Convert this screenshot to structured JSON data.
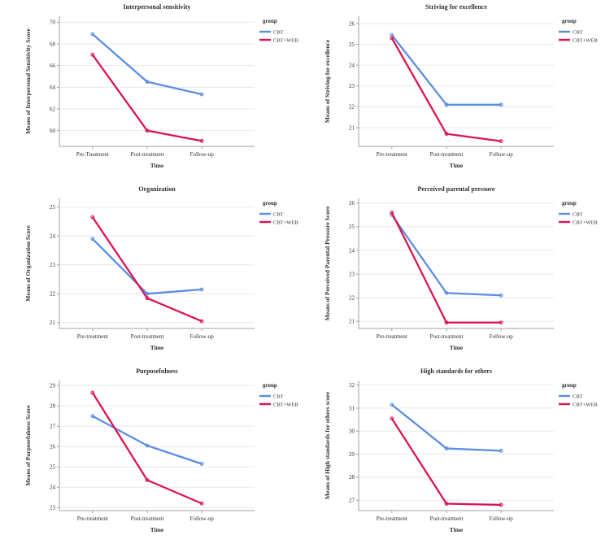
{
  "page": {
    "background": "#ffffff",
    "layout": "2x3 grid of SPSS-style line charts"
  },
  "colors": {
    "cbt_line": "#5b8de4",
    "cbt_web_line": "#de1350",
    "gridline": "#e8e8e8",
    "axis": "#a0a0a0",
    "text": "#2e2e2e"
  },
  "chart_data": [
    {
      "type": "line",
      "title": "Interpersonal sensitivity",
      "xlabel": "Time",
      "ylabel": "Means of Interpersonal Sensitivity Score",
      "categories": [
        "Pre-Treatment",
        "Post-treatment",
        "Follow-up"
      ],
      "yticks": [
        60,
        62,
        64,
        66,
        68,
        70
      ],
      "ylim": [
        58.55,
        70.55
      ],
      "grid": true,
      "legend_title": "group",
      "legend_position": "right",
      "series": [
        {
          "name": "CBT",
          "color": "#5b8de4",
          "values": [
            68.9,
            64.5,
            63.35
          ]
        },
        {
          "name": "CBT+WEB",
          "color": "#de1350",
          "values": [
            67.0,
            60.0,
            59.05
          ]
        }
      ]
    },
    {
      "type": "line",
      "title": "Striving for excellence",
      "xlabel": "Time",
      "ylabel": "Means of Striving for excellence",
      "categories": [
        "Pre-treatment",
        "Post-treatment",
        "Follow-up"
      ],
      "yticks": [
        21,
        22,
        23,
        24,
        25,
        26
      ],
      "ylim": [
        20.1,
        26.35
      ],
      "grid": true,
      "legend_title": "group",
      "legend_position": "right",
      "series": [
        {
          "name": "CBT",
          "color": "#5b8de4",
          "values": [
            25.45,
            22.1,
            22.1
          ]
        },
        {
          "name": "CBT+WEB",
          "color": "#de1350",
          "values": [
            25.3,
            20.7,
            20.35
          ]
        }
      ]
    },
    {
      "type": "line",
      "title": "Organization",
      "xlabel": "Time",
      "ylabel": "Means of Organization Score",
      "categories": [
        "Pre-treatment",
        "Post-treatment",
        "Follow-up"
      ],
      "yticks": [
        21,
        22,
        23,
        24,
        25
      ],
      "ylim": [
        20.8,
        25.3
      ],
      "grid": true,
      "legend_title": "group",
      "legend_position": "right",
      "series": [
        {
          "name": "CBT",
          "color": "#5b8de4",
          "values": [
            23.9,
            22.0,
            22.15
          ]
        },
        {
          "name": "CBT+WEB",
          "color": "#de1350",
          "values": [
            24.65,
            21.85,
            21.05
          ]
        }
      ]
    },
    {
      "type": "line",
      "title": "Perceived parental pressure",
      "xlabel": "Time",
      "ylabel": "Means of Perceived Parental Pressure Score",
      "categories": [
        "Pre-treatment",
        "Post-treatment",
        "Follow-up"
      ],
      "yticks": [
        21,
        22,
        23,
        24,
        25,
        26
      ],
      "ylim": [
        20.7,
        26.2
      ],
      "grid": true,
      "legend_title": "group",
      "legend_position": "right",
      "series": [
        {
          "name": "CBT",
          "color": "#5b8de4",
          "values": [
            25.5,
            22.2,
            22.1
          ]
        },
        {
          "name": "CBT+WEB",
          "color": "#de1350",
          "values": [
            25.6,
            20.95,
            20.95
          ]
        }
      ]
    },
    {
      "type": "line",
      "title": "Purposefulness",
      "xlabel": "Time",
      "ylabel": "Means of Purposefulness Score",
      "categories": [
        "Pre-treatment",
        "Post-treatment",
        "Follow-up"
      ],
      "yticks": [
        23,
        24,
        25,
        26,
        27,
        28,
        29
      ],
      "ylim": [
        22.85,
        29.25
      ],
      "grid": true,
      "legend_title": "group",
      "legend_position": "right",
      "series": [
        {
          "name": "CBT",
          "color": "#5b8de4",
          "values": [
            27.5,
            26.05,
            25.15
          ]
        },
        {
          "name": "CBT+WEB",
          "color": "#de1350",
          "values": [
            28.65,
            24.35,
            23.2
          ]
        }
      ]
    },
    {
      "type": "line",
      "title": "High standards for others",
      "xlabel": "Time",
      "ylabel": "Means of High standards for others score",
      "categories": [
        "Pre-treatment",
        "Post-treatment",
        "Follow-up"
      ],
      "yticks": [
        27,
        28,
        29,
        30,
        31,
        32
      ],
      "ylim": [
        26.55,
        32.2
      ],
      "grid": true,
      "legend_title": "group",
      "legend_position": "right",
      "series": [
        {
          "name": "CBT",
          "color": "#5b8de4",
          "values": [
            31.15,
            29.25,
            29.15
          ]
        },
        {
          "name": "CBT+WEB",
          "color": "#de1350",
          "values": [
            30.55,
            26.85,
            26.8
          ]
        }
      ]
    }
  ]
}
